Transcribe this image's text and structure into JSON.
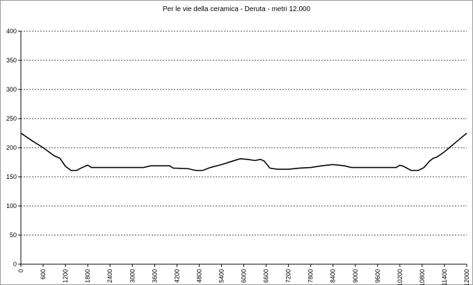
{
  "chart_data": {
    "type": "line",
    "title": "Per le vie della ceramica - Deruta - metri 12.000",
    "x": [
      0,
      300,
      600,
      900,
      1050,
      1200,
      1350,
      1500,
      1650,
      1800,
      1900,
      2400,
      3000,
      3300,
      3500,
      3600,
      4000,
      4100,
      4500,
      4700,
      4900,
      5100,
      5400,
      5700,
      5900,
      6100,
      6300,
      6450,
      6550,
      6700,
      6900,
      7200,
      7500,
      7800,
      8100,
      8400,
      8700,
      8900,
      9600,
      10100,
      10200,
      10300,
      10500,
      10700,
      10850,
      11000,
      11100,
      11200,
      11400,
      11700,
      12000
    ],
    "series": [
      {
        "color": "#000000",
        "values": [
          225,
          212,
          200,
          186,
          182,
          168,
          161,
          161,
          166,
          170,
          166,
          166,
          166,
          166,
          169,
          169,
          169,
          165,
          164,
          161,
          161,
          166,
          171,
          177,
          181,
          180,
          178,
          180,
          177,
          165,
          163,
          163,
          165,
          166,
          169,
          171,
          169,
          166,
          166,
          166,
          170,
          168,
          161,
          161,
          166,
          177,
          182,
          184,
          193,
          209,
          225
        ]
      }
    ],
    "xlim": [
      0,
      12000
    ],
    "xticks": [
      0,
      600,
      1200,
      1800,
      2400,
      3000,
      3600,
      4200,
      4800,
      5400,
      6000,
      6600,
      7200,
      7800,
      8400,
      9000,
      9600,
      10200,
      10800,
      11400,
      12000
    ],
    "ylim": [
      0,
      400
    ],
    "yticks": [
      0,
      50,
      100,
      150,
      200,
      250,
      300,
      350,
      400
    ],
    "grid": true
  }
}
